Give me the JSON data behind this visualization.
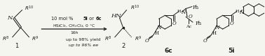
{
  "background_color": "#f5f5f0",
  "figsize": [
    3.78,
    0.81
  ],
  "dpi": 100,
  "color": "#1a1a1a",
  "arrow_color": "#1a1a1a",
  "mol1_label": "1",
  "mol2_label": "2",
  "cat1_label": "6c",
  "cat2_label": "5i",
  "cond1": "10 mol % ",
  "cond1b": "5i",
  "cond1c": " or ",
  "cond1d": "6c",
  "cond2": "HSiCl$_3$, CH$_2$Cl$_2$, 0 °C",
  "cond3": "16h",
  "result1": "up to 98% yield",
  "result2": "up to 96% ee"
}
